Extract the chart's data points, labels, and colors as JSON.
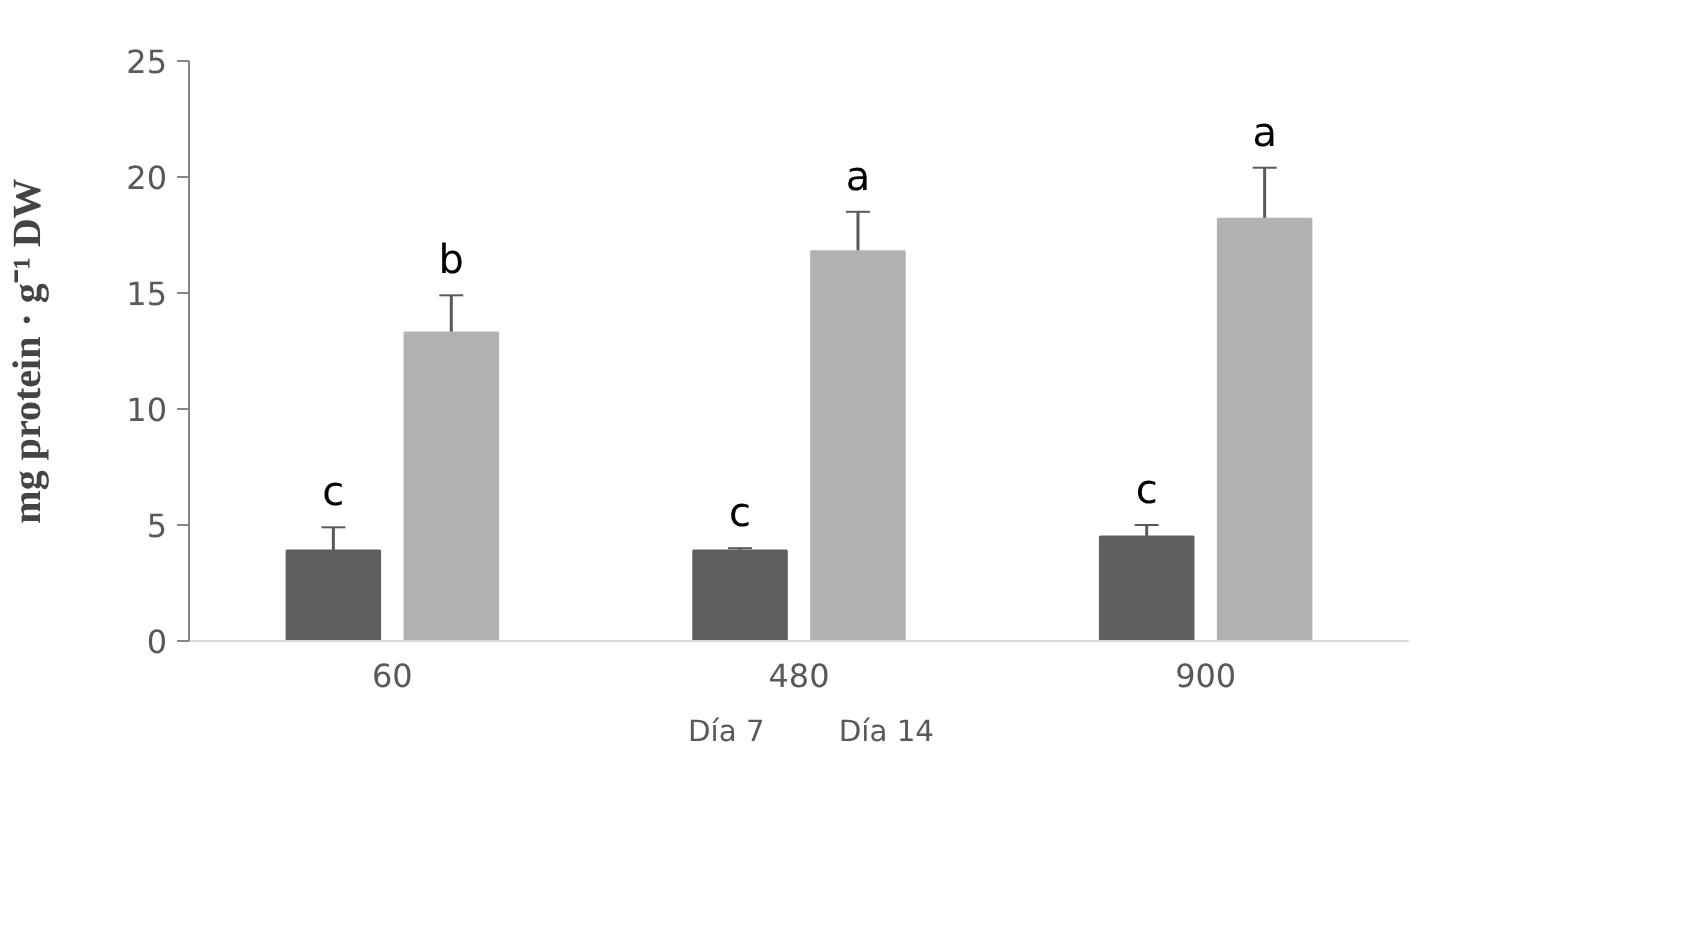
{
  "chart_data": {
    "type": "bar",
    "ylabel": "mg protein · g⁻¹ DW",
    "categories": [
      "60",
      "480",
      "900"
    ],
    "series": [
      {
        "name": "Día 7",
        "color": "#5f5f5f",
        "values": [
          3.9,
          3.9,
          4.5
        ],
        "errors": [
          1.0,
          0.1,
          0.5
        ]
      },
      {
        "name": "Día 14",
        "color": "#b2b2b2",
        "values": [
          13.3,
          16.8,
          18.2
        ],
        "errors": [
          1.6,
          1.7,
          2.2
        ]
      }
    ],
    "ylim": [
      0,
      25
    ],
    "yticks": [
      0,
      5,
      10,
      15,
      20,
      25
    ],
    "grid": false,
    "legend": "bottom",
    "annotations": [
      "c",
      "b",
      "c",
      "a",
      "c",
      "a"
    ]
  }
}
